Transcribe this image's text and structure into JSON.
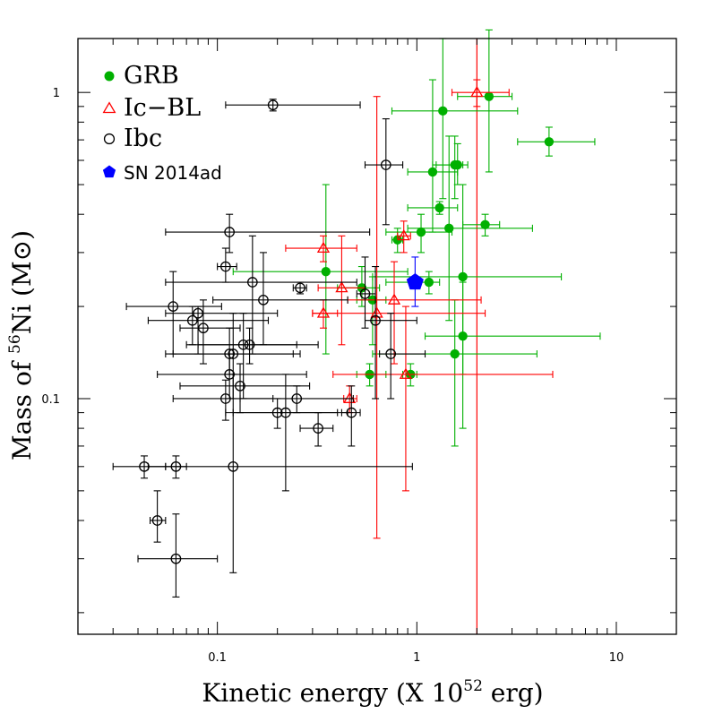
{
  "chart_data": {
    "type": "scatter",
    "title": "",
    "xlabel": "Kinetic energy (X 10",
    "xlabel_sup": "52",
    "xlabel_tail": " erg)",
    "ylabel": "Mass of ",
    "ylabel_sup": "56",
    "ylabel_tail": "Ni (M⊙)",
    "xscale": "log",
    "yscale": "log",
    "xlim": [
      0.02,
      20
    ],
    "ylim": [
      0.017,
      1.5
    ],
    "xticks": [
      {
        "value": 0.1,
        "label": "0.1"
      },
      {
        "value": 1,
        "label": "1"
      },
      {
        "value": 10,
        "label": "10"
      }
    ],
    "yticks": [
      {
        "value": 0.1,
        "label": "0.1"
      },
      {
        "value": 1,
        "label": "1"
      }
    ],
    "vertical_line": {
      "x": 2.0,
      "color": "#ff0000"
    },
    "legend": {
      "position": "top-left",
      "entries": [
        {
          "label": "GRB",
          "marker": "filled-circle",
          "color": "#00b000"
        },
        {
          "label": "Ic−BL",
          "marker": "open-triangle",
          "color": "#ff0000"
        },
        {
          "label": "Ibc",
          "marker": "open-circle",
          "color": "#000000"
        },
        {
          "label": "SN 2014ad",
          "marker": "filled-pentagon",
          "color": "#0000ff"
        }
      ]
    },
    "series": [
      {
        "name": "GRB",
        "marker": "filled-circle",
        "color": "#00b000",
        "points": [
          {
            "x": 2.3,
            "y": 0.97,
            "xerr": [
              1.6,
              3.0
            ],
            "yerr": [
              0.55,
              1.6
            ]
          },
          {
            "x": 1.35,
            "y": 0.87,
            "xerr": [
              0.75,
              3.2
            ],
            "yerr": [
              0.45,
              1.5
            ]
          },
          {
            "x": 4.6,
            "y": 0.69,
            "xerr": [
              3.2,
              7.8
            ],
            "yerr": [
              0.62,
              0.77
            ]
          },
          {
            "x": 1.55,
            "y": 0.58,
            "xerr": [
              1.2,
              1.8
            ],
            "yerr": [
              0.45,
              0.72
            ]
          },
          {
            "x": 1.6,
            "y": 0.58,
            "xerr": [
              1.25,
              1.7
            ],
            "yerr": [
              0.5,
              0.68
            ]
          },
          {
            "x": 1.2,
            "y": 0.55,
            "xerr": [
              0.9,
              1.6
            ],
            "yerr": [
              0.35,
              1.1
            ]
          },
          {
            "x": 1.3,
            "y": 0.42,
            "xerr": [
              0.9,
              1.6
            ],
            "yerr": [
              0.4,
              0.44
            ]
          },
          {
            "x": 2.2,
            "y": 0.37,
            "xerr": [
              1.7,
              2.6
            ],
            "yerr": [
              0.34,
              0.4
            ]
          },
          {
            "x": 1.45,
            "y": 0.36,
            "xerr": [
              0.9,
              3.8
            ],
            "yerr": [
              0.18,
              0.72
            ]
          },
          {
            "x": 1.05,
            "y": 0.35,
            "xerr": [
              0.7,
              1.5
            ],
            "yerr": [
              0.3,
              0.4
            ]
          },
          {
            "x": 0.8,
            "y": 0.33,
            "xerr": [
              0.75,
              0.85
            ],
            "yerr": [
              0.3,
              0.36
            ]
          },
          {
            "x": 0.35,
            "y": 0.26,
            "xerr": [
              0.12,
              0.9
            ],
            "yerr": [
              0.14,
              0.5
            ]
          },
          {
            "x": 1.7,
            "y": 0.25,
            "xerr": [
              0.6,
              5.3
            ],
            "yerr": [
              0.12,
              0.5
            ]
          },
          {
            "x": 1.15,
            "y": 0.24,
            "xerr": [
              0.7,
              1.3
            ],
            "yerr": [
              0.22,
              0.26
            ]
          },
          {
            "x": 0.53,
            "y": 0.23,
            "xerr": [
              0.4,
              0.65
            ],
            "yerr": [
              0.2,
              0.27
            ]
          },
          {
            "x": 0.6,
            "y": 0.21,
            "xerr": [
              0.5,
              0.7
            ],
            "yerr": [
              0.15,
              0.25
            ]
          },
          {
            "x": 1.7,
            "y": 0.16,
            "xerr": [
              1.1,
              8.3
            ],
            "yerr": [
              0.08,
              0.24
            ]
          },
          {
            "x": 1.55,
            "y": 0.14,
            "xerr": [
              0.6,
              4.0
            ],
            "yerr": [
              0.07,
              0.21
            ]
          },
          {
            "x": 0.58,
            "y": 0.12,
            "xerr": [
              0.5,
              0.7
            ],
            "yerr": [
              0.11,
              0.13
            ]
          },
          {
            "x": 0.93,
            "y": 0.12,
            "xerr": [
              0.85,
              1.0
            ],
            "yerr": [
              0.11,
              0.13
            ]
          }
        ]
      },
      {
        "name": "Ic−BL",
        "marker": "open-triangle",
        "color": "#ff0000",
        "points": [
          {
            "x": 2.0,
            "y": 1.0,
            "xerr": [
              1.5,
              2.9
            ],
            "yerr": [
              0.9,
              1.1
            ]
          },
          {
            "x": 0.34,
            "y": 0.31,
            "xerr": [
              0.22,
              0.5
            ],
            "yerr": [
              0.28,
              0.34
            ]
          },
          {
            "x": 0.86,
            "y": 0.34,
            "xerr": [
              0.8,
              0.93
            ],
            "yerr": [
              0.3,
              0.38
            ]
          },
          {
            "x": 0.42,
            "y": 0.23,
            "xerr": [
              0.32,
              0.55
            ],
            "yerr": [
              0.15,
              0.34
            ]
          },
          {
            "x": 0.34,
            "y": 0.19,
            "xerr": [
              0.3,
              0.4
            ],
            "yerr": [
              0.17,
              0.21
            ]
          },
          {
            "x": 0.63,
            "y": 0.19,
            "xerr": [
              0.3,
              2.2
            ],
            "yerr": [
              0.035,
              0.97
            ]
          },
          {
            "x": 0.77,
            "y": 0.21,
            "xerr": [
              0.45,
              2.1
            ],
            "yerr": [
              0.13,
              0.28
            ]
          },
          {
            "x": 0.88,
            "y": 0.12,
            "xerr": [
              0.38,
              4.8
            ],
            "yerr": [
              0.05,
              0.2
            ]
          },
          {
            "x": 0.46,
            "y": 0.1,
            "xerr": [
              0.43,
              0.5
            ],
            "yerr": [
              0.09,
              0.11
            ]
          }
        ]
      },
      {
        "name": "Ibc",
        "marker": "open-circle",
        "color": "#000000",
        "points": [
          {
            "x": 0.19,
            "y": 0.91,
            "xerr": [
              0.11,
              0.52
            ],
            "yerr": [
              0.87,
              0.95
            ]
          },
          {
            "x": 0.7,
            "y": 0.58,
            "xerr": [
              0.55,
              0.85
            ],
            "yerr": [
              0.37,
              0.82
            ]
          },
          {
            "x": 0.115,
            "y": 0.35,
            "xerr": [
              0.055,
              0.58
            ],
            "yerr": [
              0.3,
              0.4
            ]
          },
          {
            "x": 0.11,
            "y": 0.27,
            "xerr": [
              0.1,
              0.125
            ],
            "yerr": [
              0.24,
              0.31
            ]
          },
          {
            "x": 0.15,
            "y": 0.24,
            "xerr": [
              0.055,
              0.5
            ],
            "yerr": [
              0.14,
              0.34
            ]
          },
          {
            "x": 0.26,
            "y": 0.23,
            "xerr": [
              0.24,
              0.28
            ],
            "yerr": [
              0.22,
              0.24
            ]
          },
          {
            "x": 0.55,
            "y": 0.22,
            "xerr": [
              0.5,
              0.62
            ],
            "yerr": [
              0.17,
              0.29
            ]
          },
          {
            "x": 0.17,
            "y": 0.21,
            "xerr": [
              0.095,
              0.45
            ],
            "yerr": [
              0.15,
              0.3
            ]
          },
          {
            "x": 0.06,
            "y": 0.2,
            "xerr": [
              0.035,
              0.105
            ],
            "yerr": [
              0.14,
              0.26
            ]
          },
          {
            "x": 0.08,
            "y": 0.19,
            "xerr": [
              0.055,
              0.2
            ],
            "yerr": [
              0.14,
              0.2
            ]
          },
          {
            "x": 0.075,
            "y": 0.18,
            "xerr": [
              0.045,
              0.18
            ],
            "yerr": [
              0.15,
              0.2
            ]
          },
          {
            "x": 0.085,
            "y": 0.17,
            "xerr": [
              0.065,
              0.13
            ],
            "yerr": [
              0.13,
              0.21
            ]
          },
          {
            "x": 0.62,
            "y": 0.18,
            "xerr": [
              0.55,
              1.0
            ],
            "yerr": [
              0.1,
              0.27
            ]
          },
          {
            "x": 0.135,
            "y": 0.15,
            "xerr": [
              0.08,
              0.25
            ],
            "yerr": [
              0.1,
              0.19
            ]
          },
          {
            "x": 0.145,
            "y": 0.15,
            "xerr": [
              0.07,
              0.32
            ],
            "yerr": [
              0.13,
              0.17
            ]
          },
          {
            "x": 0.12,
            "y": 0.14,
            "xerr": [
              0.055,
              0.26
            ],
            "yerr": [
              0.1,
              0.19
            ]
          },
          {
            "x": 0.115,
            "y": 0.14,
            "xerr": [
              0.06,
              0.24
            ],
            "yerr": [
              0.12,
              0.17
            ]
          },
          {
            "x": 0.74,
            "y": 0.14,
            "xerr": [
              0.65,
              1.1
            ],
            "yerr": [
              0.1,
              0.19
            ]
          },
          {
            "x": 0.115,
            "y": 0.12,
            "xerr": [
              0.05,
              0.28
            ],
            "yerr": [
              0.1,
              0.14
            ]
          },
          {
            "x": 0.13,
            "y": 0.11,
            "xerr": [
              0.065,
              0.29
            ],
            "yerr": [
              0.09,
              0.13
            ]
          },
          {
            "x": 0.11,
            "y": 0.1,
            "xerr": [
              0.06,
              0.19
            ],
            "yerr": [
              0.085,
              0.115
            ]
          },
          {
            "x": 0.25,
            "y": 0.1,
            "xerr": [
              0.13,
              0.48
            ],
            "yerr": [
              0.09,
              0.11
            ]
          },
          {
            "x": 0.2,
            "y": 0.09,
            "xerr": [
              0.11,
              0.4
            ],
            "yerr": [
              0.08,
              0.1
            ]
          },
          {
            "x": 0.22,
            "y": 0.09,
            "xerr": [
              0.12,
              0.45
            ],
            "yerr": [
              0.05,
              0.12
            ]
          },
          {
            "x": 0.47,
            "y": 0.09,
            "xerr": [
              0.42,
              0.52
            ],
            "yerr": [
              0.07,
              0.11
            ]
          },
          {
            "x": 0.32,
            "y": 0.08,
            "xerr": [
              0.26,
              0.38
            ],
            "yerr": [
              0.07,
              0.09
            ]
          },
          {
            "x": 0.043,
            "y": 0.06,
            "xerr": [
              0.03,
              0.055
            ],
            "yerr": [
              0.055,
              0.065
            ]
          },
          {
            "x": 0.062,
            "y": 0.06,
            "xerr": [
              0.055,
              0.07
            ],
            "yerr": [
              0.055,
              0.065
            ]
          },
          {
            "x": 0.12,
            "y": 0.06,
            "xerr": [
              0.045,
              0.95
            ],
            "yerr": [
              0.027,
              0.12
            ]
          },
          {
            "x": 0.05,
            "y": 0.04,
            "xerr": [
              0.046,
              0.055
            ],
            "yerr": [
              0.034,
              0.05
            ]
          },
          {
            "x": 0.062,
            "y": 0.03,
            "xerr": [
              0.04,
              0.1
            ],
            "yerr": [
              0.0225,
              0.042
            ]
          }
        ]
      },
      {
        "name": "SN 2014ad",
        "marker": "filled-pentagon",
        "color": "#0000ff",
        "points": [
          {
            "x": 0.98,
            "y": 0.24,
            "xerr": [
              0.92,
              1.04
            ],
            "yerr": [
              0.2,
              0.29
            ]
          }
        ]
      }
    ]
  }
}
